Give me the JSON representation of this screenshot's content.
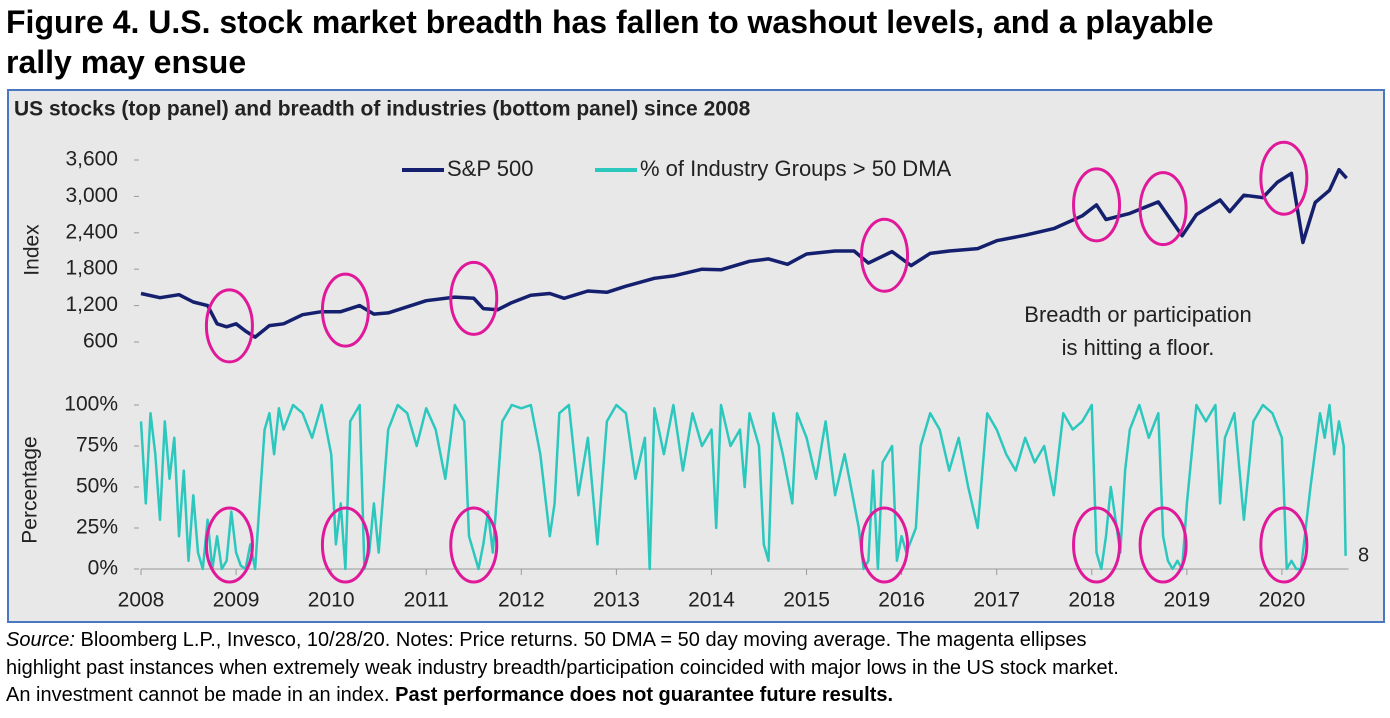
{
  "header": {
    "title_lines": [
      "Figure 4. U.S. stock market breadth has fallen to washout levels, and a playable",
      "rally may ensue"
    ]
  },
  "chart_data": [
    {
      "type": "line",
      "title": "US stocks (top panel) and breadth of industries (bottom panel) since 2008",
      "ylabel": "Index",
      "annotation_lines": [
        "Breadth or participation",
        "is hitting a floor."
      ],
      "xlim": [
        2008,
        2020.7
      ],
      "ylim": [
        600,
        3600
      ],
      "yticks": [
        600,
        {
          "value": 1200,
          "label": "1,200"
        },
        {
          "value": 1800,
          "label": "1,800"
        },
        {
          "value": 2400,
          "label": "2,400"
        },
        {
          "value": 3000,
          "label": "3,000"
        },
        {
          "value": 3600,
          "label": "3,600"
        }
      ],
      "highlights": [
        2008.93,
        2010.15,
        2011.5,
        2015.82,
        2018.05,
        2018.75,
        2020.02
      ],
      "highlight_color": "#e0189a",
      "x": [
        2008.0,
        2008.2,
        2008.4,
        2008.55,
        2008.7,
        2008.8,
        2008.9,
        2009.0,
        2009.1,
        2009.2,
        2009.35,
        2009.5,
        2009.7,
        2009.9,
        2010.1,
        2010.3,
        2010.45,
        2010.6,
        2010.8,
        2011.0,
        2011.3,
        2011.5,
        2011.6,
        2011.75,
        2011.9,
        2012.1,
        2012.3,
        2012.45,
        2012.7,
        2012.9,
        2013.1,
        2013.4,
        2013.6,
        2013.9,
        2014.1,
        2014.4,
        2014.6,
        2014.8,
        2015.0,
        2015.3,
        2015.5,
        2015.65,
        2015.9,
        2016.1,
        2016.3,
        2016.5,
        2016.8,
        2017.0,
        2017.3,
        2017.6,
        2017.9,
        2018.05,
        2018.15,
        2018.4,
        2018.7,
        2018.95,
        2019.1,
        2019.35,
        2019.45,
        2019.6,
        2019.8,
        2019.95,
        2020.1,
        2020.22,
        2020.35,
        2020.5,
        2020.6,
        2020.68
      ],
      "series": [
        {
          "name": "S&P 500",
          "color": "#14206e",
          "values": [
            1400,
            1330,
            1380,
            1260,
            1200,
            900,
            850,
            900,
            780,
            680,
            870,
            900,
            1050,
            1100,
            1100,
            1200,
            1060,
            1080,
            1180,
            1280,
            1340,
            1320,
            1150,
            1130,
            1250,
            1370,
            1400,
            1320,
            1440,
            1420,
            1520,
            1650,
            1690,
            1800,
            1790,
            1930,
            1970,
            1880,
            2050,
            2100,
            2100,
            1900,
            2090,
            1860,
            2060,
            2100,
            2140,
            2270,
            2360,
            2470,
            2680,
            2860,
            2620,
            2720,
            2910,
            2350,
            2700,
            2940,
            2750,
            3020,
            2980,
            3230,
            3380,
            2240,
            2900,
            3100,
            3440,
            3300
          ]
        }
      ]
    },
    {
      "type": "line",
      "ylabel": "Percentage",
      "xlim": [
        2008,
        2020.7
      ],
      "ylim": [
        0,
        100
      ],
      "yticks": [
        {
          "value": 0,
          "label": "0%"
        },
        {
          "value": 25,
          "label": "25%"
        },
        {
          "value": 50,
          "label": "50%"
        },
        {
          "value": 75,
          "label": "75%"
        },
        {
          "value": 100,
          "label": "100%"
        }
      ],
      "xticks": [
        2008,
        2009,
        2010,
        2011,
        2012,
        2013,
        2014,
        2015,
        2016,
        2017,
        2018,
        2019,
        2020
      ],
      "x": [
        2008.0,
        2008.05,
        2008.1,
        2008.15,
        2008.2,
        2008.25,
        2008.3,
        2008.35,
        2008.4,
        2008.45,
        2008.5,
        2008.55,
        2008.6,
        2008.65,
        2008.7,
        2008.75,
        2008.8,
        2008.85,
        2008.9,
        2008.95,
        2009.0,
        2009.05,
        2009.1,
        2009.15,
        2009.2,
        2009.3,
        2009.35,
        2009.4,
        2009.45,
        2009.5,
        2009.6,
        2009.7,
        2009.8,
        2009.9,
        2010.0,
        2010.05,
        2010.1,
        2010.15,
        2010.2,
        2010.3,
        2010.35,
        2010.4,
        2010.45,
        2010.5,
        2010.6,
        2010.7,
        2010.8,
        2010.9,
        2011.0,
        2011.1,
        2011.2,
        2011.3,
        2011.4,
        2011.45,
        2011.5,
        2011.55,
        2011.6,
        2011.65,
        2011.7,
        2011.8,
        2011.9,
        2012.0,
        2012.1,
        2012.2,
        2012.3,
        2012.35,
        2012.4,
        2012.5,
        2012.6,
        2012.7,
        2012.8,
        2012.9,
        2013.0,
        2013.1,
        2013.2,
        2013.3,
        2013.35,
        2013.4,
        2013.5,
        2013.6,
        2013.7,
        2013.8,
        2013.9,
        2014.0,
        2014.05,
        2014.1,
        2014.2,
        2014.3,
        2014.35,
        2014.4,
        2014.5,
        2014.55,
        2014.6,
        2014.65,
        2014.75,
        2014.85,
        2014.9,
        2015.0,
        2015.1,
        2015.2,
        2015.3,
        2015.4,
        2015.5,
        2015.55,
        2015.6,
        2015.65,
        2015.7,
        2015.75,
        2015.8,
        2015.9,
        2015.95,
        2016.0,
        2016.05,
        2016.15,
        2016.2,
        2016.3,
        2016.4,
        2016.5,
        2016.6,
        2016.7,
        2016.8,
        2016.9,
        2017.0,
        2017.1,
        2017.2,
        2017.3,
        2017.4,
        2017.5,
        2017.6,
        2017.7,
        2017.8,
        2017.9,
        2018.0,
        2018.05,
        2018.1,
        2018.15,
        2018.2,
        2018.3,
        2018.35,
        2018.4,
        2018.5,
        2018.6,
        2018.7,
        2018.75,
        2018.8,
        2018.85,
        2018.9,
        2018.95,
        2019.0,
        2019.1,
        2019.2,
        2019.3,
        2019.35,
        2019.4,
        2019.5,
        2019.6,
        2019.7,
        2019.8,
        2019.9,
        2020.0,
        2020.05,
        2020.1,
        2020.15,
        2020.2,
        2020.3,
        2020.4,
        2020.45,
        2020.5,
        2020.55,
        2020.6,
        2020.65,
        2020.67
      ],
      "series": [
        {
          "name": "% of Industry Groups > 50 DMA",
          "color": "#2cc8be",
          "last_label": "8",
          "values": [
            90,
            40,
            95,
            70,
            30,
            90,
            55,
            80,
            20,
            60,
            5,
            45,
            10,
            0,
            30,
            0,
            20,
            0,
            5,
            35,
            10,
            2,
            0,
            15,
            0,
            85,
            95,
            70,
            98,
            85,
            100,
            95,
            80,
            100,
            70,
            15,
            40,
            0,
            90,
            100,
            0,
            10,
            40,
            10,
            85,
            100,
            95,
            75,
            98,
            85,
            55,
            100,
            90,
            20,
            10,
            0,
            15,
            35,
            10,
            90,
            100,
            98,
            100,
            70,
            20,
            40,
            95,
            100,
            45,
            80,
            15,
            90,
            100,
            95,
            55,
            80,
            0,
            98,
            70,
            100,
            60,
            95,
            75,
            85,
            25,
            100,
            75,
            85,
            50,
            95,
            75,
            15,
            5,
            95,
            70,
            40,
            95,
            80,
            55,
            90,
            45,
            70,
            40,
            25,
            0,
            5,
            60,
            0,
            65,
            75,
            5,
            20,
            10,
            25,
            75,
            95,
            85,
            60,
            80,
            50,
            25,
            95,
            85,
            70,
            60,
            80,
            65,
            75,
            45,
            95,
            85,
            90,
            100,
            10,
            0,
            20,
            50,
            10,
            60,
            85,
            100,
            80,
            95,
            20,
            5,
            0,
            5,
            0,
            40,
            100,
            90,
            100,
            40,
            80,
            95,
            30,
            90,
            100,
            95,
            80,
            0,
            5,
            0,
            0,
            50,
            95,
            80,
            100,
            70,
            90,
            75,
            8
          ]
        }
      ]
    }
  ],
  "footnote": {
    "source_label": "Source:",
    "lines": [
      "Bloomberg L.P., Invesco, 10/28/20. Notes: Price returns. 50 DMA = 50 day moving average. The magenta ellipses",
      "highlight past instances when extremely weak industry breadth/participation coincided with major lows in the US stock market.",
      "An investment cannot be made in an index."
    ],
    "bold": "Past performance does not guarantee future results."
  }
}
